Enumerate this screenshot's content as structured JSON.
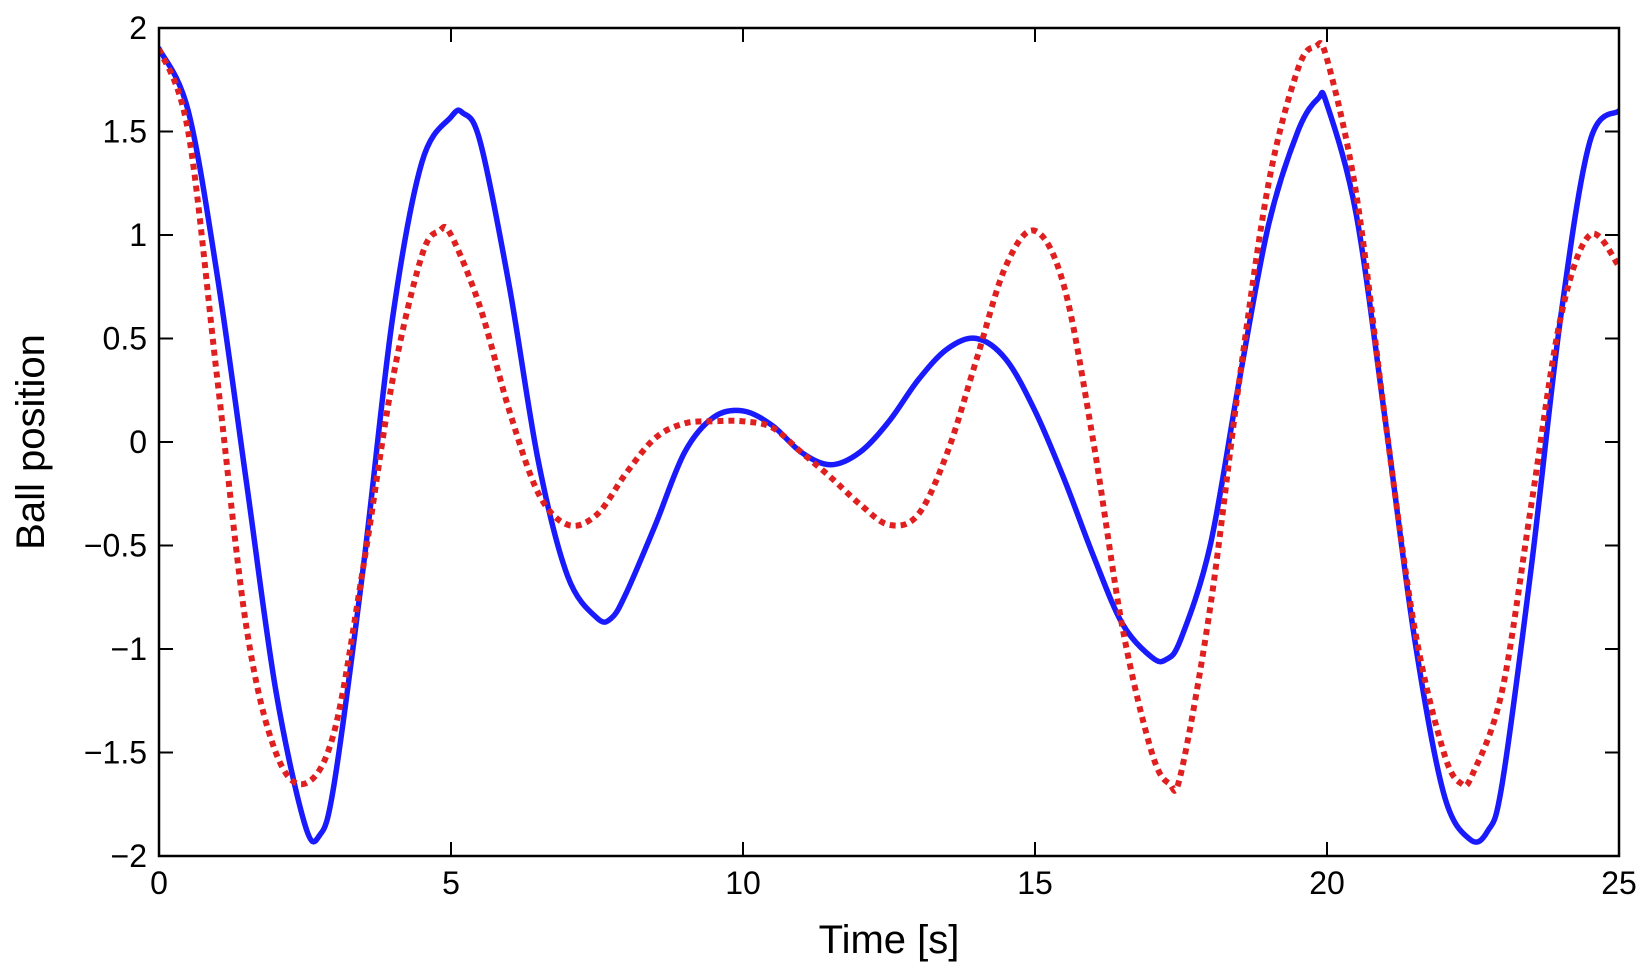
{
  "chart_data": {
    "type": "line",
    "title": "",
    "xlabel": "Time [s]",
    "ylabel": "Ball position",
    "xlim": [
      0,
      25
    ],
    "ylim": [
      -2,
      2
    ],
    "grid": false,
    "legend": "none",
    "xticks": [
      0,
      5,
      10,
      15,
      20,
      25
    ],
    "xtick_labels": [
      "0",
      "5",
      "10",
      "15",
      "20",
      "25"
    ],
    "yticks": [
      2,
      1.5,
      1,
      0.5,
      0,
      -0.5,
      -1,
      -1.5,
      -2
    ],
    "ytick_labels": [
      "2",
      "1.5",
      "1",
      "0.5",
      "0",
      "−0.5",
      "−1",
      "−1.5",
      "−2"
    ],
    "series": [
      {
        "style": "solid",
        "color": "#1a1aff",
        "x": [
          0,
          0.5,
          1,
          1.5,
          2,
          2.5,
          2.75,
          3,
          3.5,
          4,
          4.5,
          5,
          5.2,
          5.5,
          6,
          6.5,
          7,
          7.5,
          7.75,
          8,
          8.5,
          9,
          9.5,
          10,
          10.5,
          11,
          11.5,
          12,
          12.5,
          13,
          13.5,
          14,
          14.5,
          15,
          15.5,
          16,
          16.5,
          17,
          17.25,
          17.5,
          18,
          18.5,
          19,
          19.5,
          19.85,
          20,
          20.5,
          21,
          21.5,
          22,
          22.45,
          22.75,
          23,
          23.5,
          24,
          24.5,
          25
        ],
        "y": [
          1.9,
          1.6,
          0.8,
          -0.2,
          -1.2,
          -1.85,
          -1.9,
          -1.65,
          -0.6,
          0.6,
          1.35,
          1.57,
          1.59,
          1.45,
          0.75,
          -0.1,
          -0.65,
          -0.85,
          -0.85,
          -0.73,
          -0.4,
          -0.05,
          0.12,
          0.15,
          0.08,
          -0.05,
          -0.11,
          -0.05,
          0.1,
          0.3,
          0.45,
          0.5,
          0.4,
          0.15,
          -0.18,
          -0.55,
          -0.88,
          -1.04,
          -1.05,
          -0.95,
          -0.5,
          0.3,
          1.05,
          1.5,
          1.66,
          1.63,
          1.1,
          0.1,
          -0.95,
          -1.7,
          -1.92,
          -1.88,
          -1.65,
          -0.6,
          0.6,
          1.45,
          1.6
        ]
      },
      {
        "style": "dotted",
        "color": "#e02020",
        "x": [
          0,
          0.5,
          1,
          1.5,
          2,
          2.5,
          3,
          3.5,
          4,
          4.5,
          4.8,
          5,
          5.5,
          6,
          6.5,
          7,
          7.5,
          8,
          8.5,
          9,
          9.5,
          10,
          10.5,
          11,
          11.5,
          12,
          12.5,
          13,
          13.5,
          14,
          14.5,
          15,
          15.5,
          16,
          16.5,
          17,
          17.3,
          17.5,
          18,
          18.5,
          19,
          19.5,
          19.8,
          20,
          20.5,
          21,
          21.5,
          22,
          22.3,
          22.5,
          23,
          23.5,
          24,
          24.5,
          25
        ],
        "y": [
          1.9,
          1.5,
          0.3,
          -0.9,
          -1.5,
          -1.65,
          -1.4,
          -0.6,
          0.3,
          0.9,
          1.02,
          1.0,
          0.65,
          0.15,
          -0.25,
          -0.4,
          -0.35,
          -0.15,
          0.02,
          0.09,
          0.1,
          0.1,
          0.07,
          -0.05,
          -0.17,
          -0.3,
          -0.4,
          -0.35,
          -0.05,
          0.4,
          0.85,
          1.02,
          0.75,
          0.0,
          -0.9,
          -1.5,
          -1.65,
          -1.6,
          -0.8,
          0.3,
          1.25,
          1.8,
          1.91,
          1.85,
          1.2,
          0.1,
          -0.9,
          -1.5,
          -1.65,
          -1.6,
          -1.2,
          -0.3,
          0.6,
          1.0,
          0.85
        ]
      }
    ]
  }
}
